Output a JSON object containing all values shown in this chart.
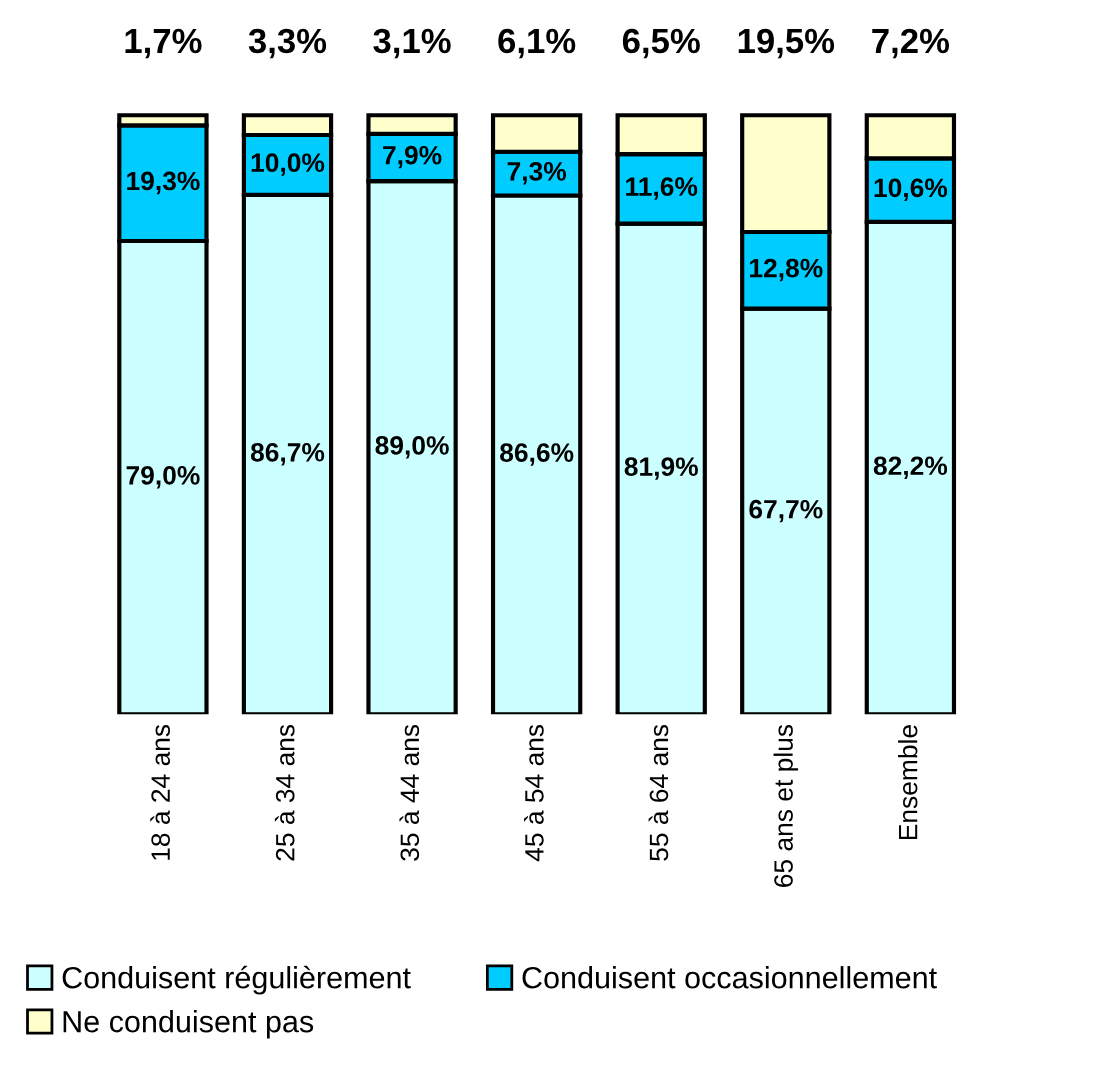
{
  "chart_data": {
    "type": "bar",
    "stacked": true,
    "categories": [
      "18 à 24 ans",
      "25 à 34 ans",
      "35 à 44 ans",
      "45 à 54 ans",
      "55 à 64 ans",
      "65 ans et plus",
      "Ensemble"
    ],
    "series": [
      {
        "name": "Conduisent régulièrement",
        "color": "#ccffff",
        "values": [
          79.0,
          86.7,
          89.0,
          86.6,
          81.9,
          67.7,
          82.2
        ],
        "value_labels": [
          "79,0%",
          "86,7%",
          "89,0%",
          "86,6%",
          "81,9%",
          "67,7%",
          "82,2%"
        ]
      },
      {
        "name": "Conduisent occasionnellement",
        "color": "#00ccff",
        "values": [
          19.3,
          10.0,
          7.9,
          7.3,
          11.6,
          12.8,
          10.6
        ],
        "value_labels": [
          "19,3%",
          "10,0%",
          "7,9%",
          "7,3%",
          "11,6%",
          "12,8%",
          "10,6%"
        ]
      },
      {
        "name": "Ne conduisent pas",
        "color": "#ffffcc",
        "values": [
          1.7,
          3.3,
          3.1,
          6.1,
          6.5,
          19.5,
          7.2
        ],
        "value_labels": [
          "1,7%",
          "3,3%",
          "3,1%",
          "6,1%",
          "6,5%",
          "19,5%",
          "7,2%"
        ]
      }
    ],
    "legend": "bottom",
    "grid": false,
    "tick_labels": "x"
  }
}
